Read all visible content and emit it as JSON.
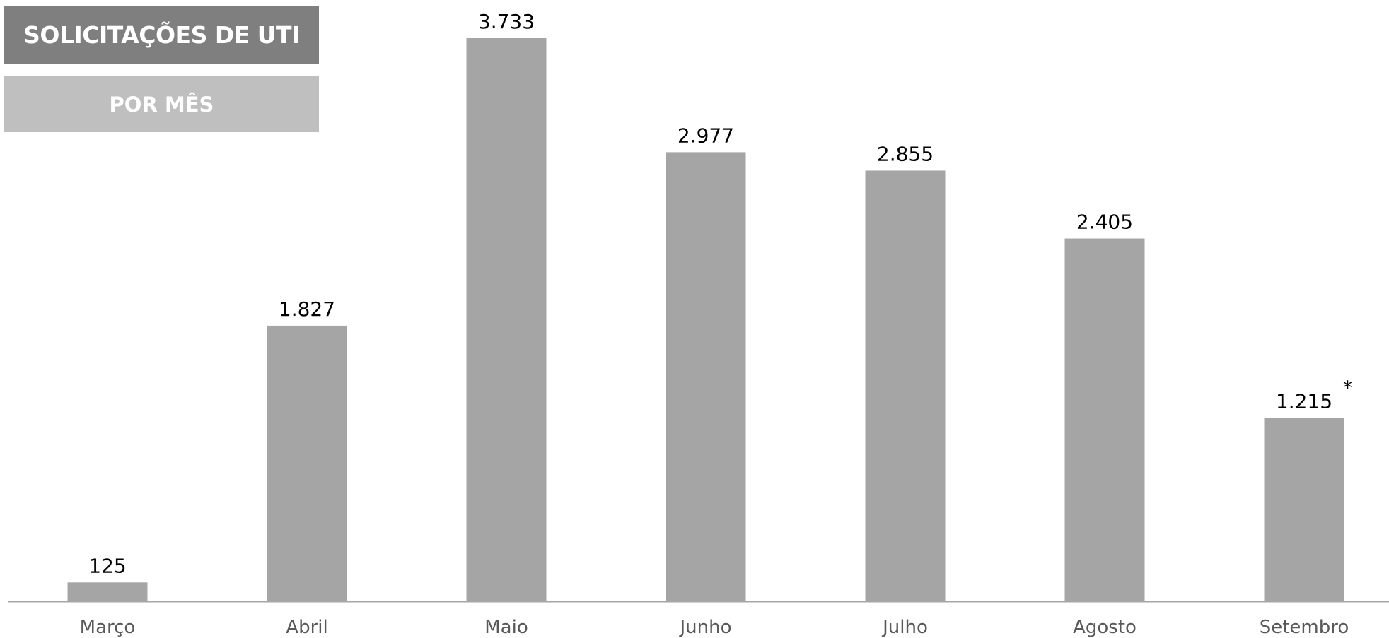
{
  "header": {
    "title": "SOLICITAÇÕES DE UTI",
    "subtitle": "POR MÊS"
  },
  "colors": {
    "bar": "#a5a5a5",
    "title_bg": "#7f7f7f",
    "subtitle_bg": "#bfbfbf",
    "axis": "#a6a6a6"
  },
  "chart_data": {
    "type": "bar",
    "title": "SOLICITAÇÕES DE UTI",
    "subtitle": "POR MÊS",
    "categories": [
      "Março",
      "Abril",
      "Maio",
      "Junho",
      "Julho",
      "Agosto",
      "Setembro"
    ],
    "values": [
      125,
      1827,
      3733,
      2977,
      2855,
      2405,
      1215
    ],
    "value_labels": [
      "125",
      "1.827",
      "3.733",
      "2.977",
      "2.855",
      "2.405",
      "1.215"
    ],
    "annotations": [
      {
        "category": "Setembro",
        "text": "*"
      }
    ],
    "ylim": [
      0,
      3733
    ],
    "grid": false,
    "legend": "none"
  }
}
